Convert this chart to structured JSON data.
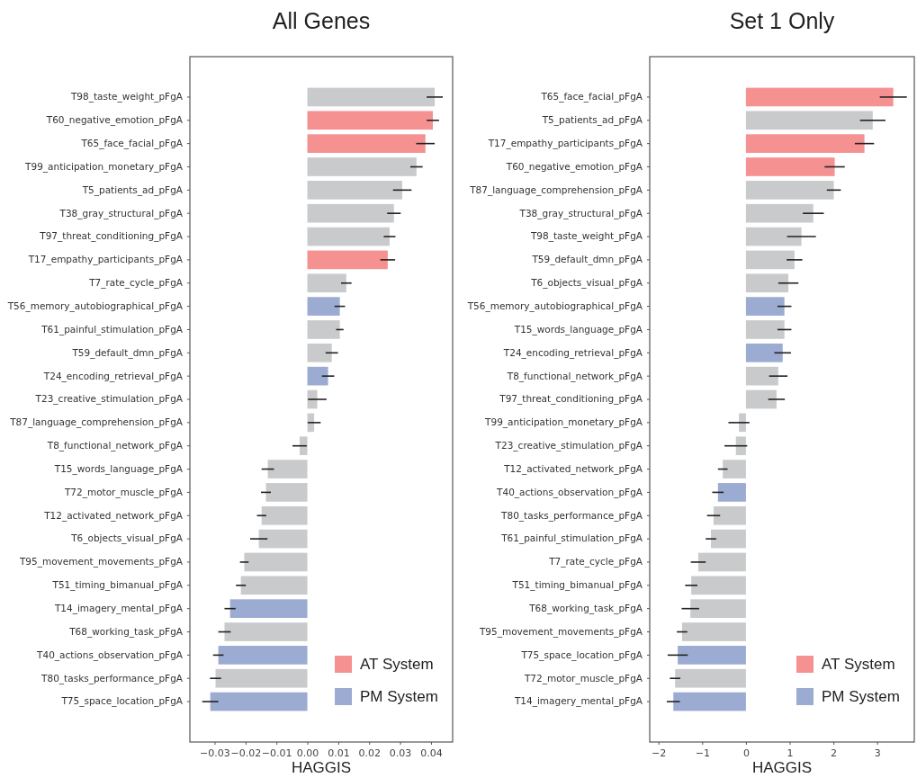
{
  "chart_data": [
    {
      "type": "bar",
      "orientation": "horizontal",
      "title": "All Genes",
      "xlabel": "HAGGIS",
      "categories": [
        "T98_taste_weight_pFgA",
        "T60_negative_emotion_pFgA",
        "T65_face_facial_pFgA",
        "T99_anticipation_monetary_pFgA",
        "T5_patients_ad_pFgA",
        "T38_gray_structural_pFgA",
        "T97_threat_conditioning_pFgA",
        "T17_empathy_participants_pFgA",
        "T7_rate_cycle_pFgA",
        "T56_memory_autobiographical_pFgA",
        "T61_painful_stimulation_pFgA",
        "T59_default_dmn_pFgA",
        "T24_encoding_retrieval_pFgA",
        "T23_creative_stimulation_pFgA",
        "T87_language_comprehension_pFgA",
        "T8_functional_network_pFgA",
        "T15_words_language_pFgA",
        "T72_motor_muscle_pFgA",
        "T12_activated_network_pFgA",
        "T6_objects_visual_pFgA",
        "T95_movement_movements_pFgA",
        "T51_timing_bimanual_pFgA",
        "T14_imagery_mental_pFgA",
        "T68_working_task_pFgA",
        "T40_actions_observation_pFgA",
        "T80_tasks_performance_pFgA",
        "T75_space_location_pFgA"
      ],
      "series": [
        {
          "color": "#c9cacc",
          "values": [
            0.0412,
            null,
            null,
            0.0353,
            0.0307,
            0.028,
            0.0266,
            null,
            0.0126,
            null,
            0.0105,
            0.0079,
            null,
            0.0032,
            0.0022,
            -0.0025,
            -0.0128,
            -0.0134,
            -0.0148,
            -0.0157,
            -0.0204,
            -0.0215,
            null,
            -0.0268,
            null,
            -0.0297,
            null
          ],
          "errors": [
            0.0026,
            null,
            null,
            0.002,
            0.003,
            0.0022,
            0.0019,
            null,
            0.0017,
            null,
            0.0012,
            0.002,
            null,
            0.003,
            0.0021,
            0.0023,
            0.002,
            0.0016,
            0.0015,
            0.0028,
            0.0014,
            0.0016,
            null,
            0.002,
            null,
            0.0018,
            null
          ]
        },
        {
          "name": "AT System",
          "color": "#f69191",
          "values": [
            null,
            0.0406,
            0.0382,
            null,
            null,
            null,
            null,
            0.026,
            null,
            null,
            null,
            null,
            null,
            null,
            null,
            null,
            null,
            null,
            null,
            null,
            null,
            null,
            null,
            null,
            null,
            null,
            null
          ],
          "errors": [
            null,
            0.002,
            0.003,
            null,
            null,
            null,
            null,
            0.0024,
            null,
            null,
            null,
            null,
            null,
            null,
            null,
            null,
            null,
            null,
            null,
            null,
            null,
            null,
            null,
            null,
            null,
            null,
            null
          ]
        },
        {
          "name": "PM System",
          "color": "#9babd2",
          "values": [
            null,
            null,
            null,
            null,
            null,
            null,
            null,
            null,
            null,
            0.0105,
            null,
            null,
            0.0067,
            null,
            null,
            null,
            null,
            null,
            null,
            null,
            null,
            null,
            -0.025,
            null,
            -0.0288,
            null,
            -0.0314
          ],
          "errors": [
            null,
            null,
            null,
            null,
            null,
            null,
            null,
            null,
            null,
            0.0017,
            null,
            null,
            0.002,
            null,
            null,
            null,
            null,
            null,
            null,
            null,
            null,
            null,
            0.0018,
            null,
            0.0017,
            null,
            0.0026
          ]
        }
      ],
      "xlim": [
        -0.038,
        0.047
      ],
      "xticks": [
        {
          "value": -0.03,
          "label": "−0.03"
        },
        {
          "value": -0.02,
          "label": "−0.02"
        },
        {
          "value": -0.01,
          "label": "−0.01"
        },
        {
          "value": 0,
          "label": "0.00"
        },
        {
          "value": 0.01,
          "label": "0.01"
        },
        {
          "value": 0.02,
          "label": "0.02"
        },
        {
          "value": 0.03,
          "label": "0.03"
        },
        {
          "value": 0.04,
          "label": "0.04"
        }
      ],
      "legend": "bottom right"
    },
    {
      "type": "bar",
      "orientation": "horizontal",
      "title": "Set 1 Only",
      "xlabel": "HAGGIS",
      "categories": [
        "T65_face_facial_pFgA",
        "T5_patients_ad_pFgA",
        "T17_empathy_participants_pFgA",
        "T60_negative_emotion_pFgA",
        "T87_language_comprehension_pFgA",
        "T38_gray_structural_pFgA",
        "T98_taste_weight_pFgA",
        "T59_default_dmn_pFgA",
        "T6_objects_visual_pFgA",
        "T56_memory_autobiographical_pFgA",
        "T15_words_language_pFgA",
        "T24_encoding_retrieval_pFgA",
        "T8_functional_network_pFgA",
        "T97_threat_conditioning_pFgA",
        "T99_anticipation_monetary_pFgA",
        "T23_creative_stimulation_pFgA",
        "T12_activated_network_pFgA",
        "T40_actions_observation_pFgA",
        "T80_tasks_performance_pFgA",
        "T61_painful_stimulation_pFgA",
        "T7_rate_cycle_pFgA",
        "T51_timing_bimanual_pFgA",
        "T68_working_task_pFgA",
        "T95_movement_movements_pFgA",
        "T75_space_location_pFgA",
        "T72_motor_muscle_pFgA",
        "T14_imagery_mental_pFgA"
      ],
      "series": [
        {
          "color": "#c9cacc",
          "values": [
            null,
            2.9,
            null,
            null,
            2.01,
            1.54,
            1.27,
            1.11,
            0.97,
            null,
            0.88,
            null,
            0.74,
            0.7,
            -0.16,
            -0.23,
            -0.53,
            null,
            -0.74,
            -0.8,
            -1.09,
            -1.25,
            -1.27,
            -1.46,
            null,
            -1.62,
            null
          ],
          "errors": [
            null,
            0.29,
            null,
            null,
            0.16,
            0.24,
            0.33,
            0.18,
            0.23,
            null,
            0.16,
            null,
            0.21,
            0.19,
            0.24,
            0.26,
            0.11,
            null,
            0.15,
            0.12,
            0.17,
            0.14,
            0.2,
            0.12,
            null,
            0.12,
            null
          ]
        },
        {
          "name": "AT System",
          "color": "#f69191",
          "values": [
            3.37,
            null,
            2.71,
            2.03,
            null,
            null,
            null,
            null,
            null,
            null,
            null,
            null,
            null,
            null,
            null,
            null,
            null,
            null,
            null,
            null,
            null,
            null,
            null,
            null,
            null,
            null,
            null
          ],
          "errors": [
            0.31,
            null,
            0.22,
            0.23,
            null,
            null,
            null,
            null,
            null,
            null,
            null,
            null,
            null,
            null,
            null,
            null,
            null,
            null,
            null,
            null,
            null,
            null,
            null,
            null,
            null,
            null,
            null
          ]
        },
        {
          "name": "PM System",
          "color": "#9babd2",
          "values": [
            null,
            null,
            null,
            null,
            null,
            null,
            null,
            null,
            null,
            0.88,
            null,
            0.84,
            null,
            null,
            null,
            null,
            null,
            -0.64,
            null,
            null,
            null,
            null,
            null,
            null,
            -1.56,
            null,
            -1.66
          ],
          "errors": [
            null,
            null,
            null,
            null,
            null,
            null,
            null,
            null,
            null,
            0.16,
            null,
            0.19,
            null,
            null,
            null,
            null,
            null,
            0.13,
            null,
            null,
            null,
            null,
            null,
            null,
            0.23,
            null,
            0.15
          ]
        }
      ],
      "xlim": [
        -2.2,
        3.85
      ],
      "xticks": [
        {
          "value": -2,
          "label": "−2"
        },
        {
          "value": -1,
          "label": "−1"
        },
        0,
        1,
        2,
        3
      ],
      "legend": "bottom right"
    }
  ]
}
